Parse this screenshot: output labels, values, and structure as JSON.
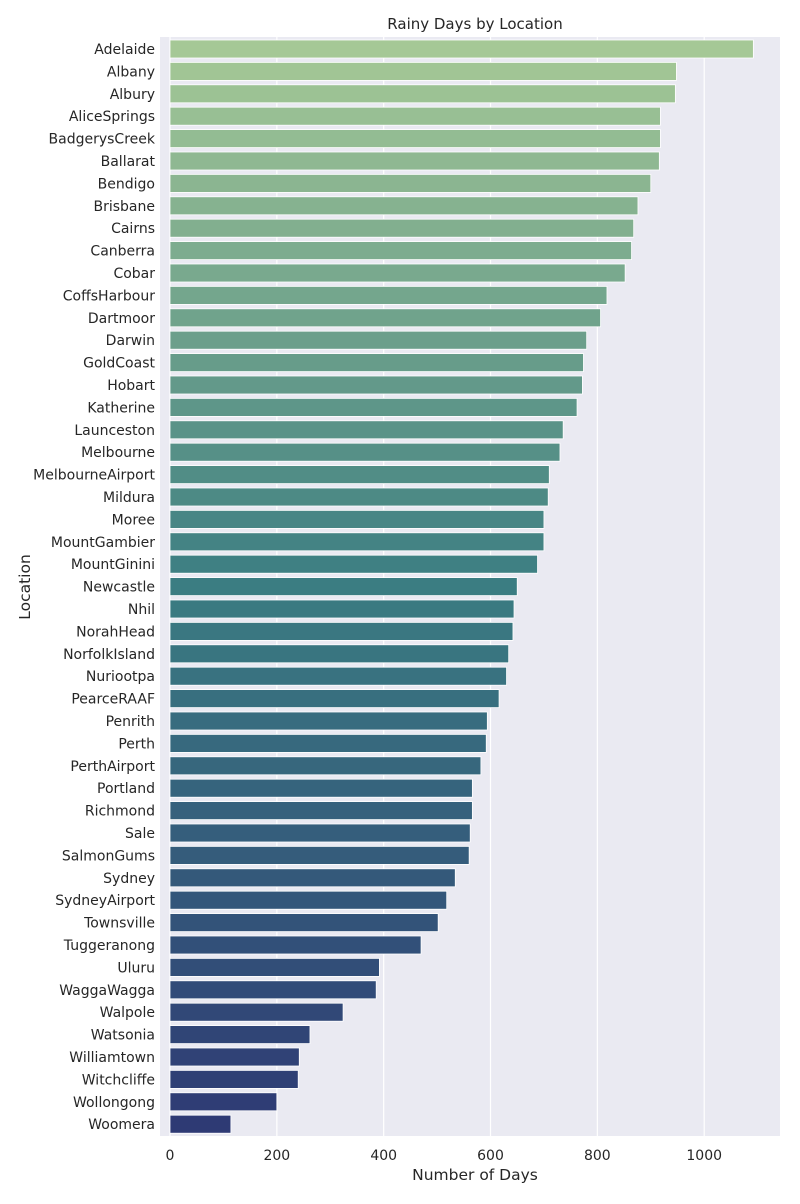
{
  "chart_data": {
    "type": "bar",
    "orientation": "horizontal",
    "title": "Rainy Days by Location",
    "xlabel": "Number of Days",
    "ylabel": "Location",
    "xlim": [
      0,
      1150
    ],
    "xticks": [
      0,
      200,
      400,
      600,
      800,
      1000
    ],
    "grid": true,
    "palette": "crest",
    "colors": {
      "start": "#A5C896",
      "mid": "#3B7D82",
      "end": "#2E3A74",
      "background": "#EAEAF2",
      "grid": "#FFFFFF"
    },
    "categories": [
      "Adelaide",
      "Albany",
      "Albury",
      "AliceSprings",
      "BadgerysCreek",
      "Ballarat",
      "Bendigo",
      "Brisbane",
      "Cairns",
      "Canberra",
      "Cobar",
      "CoffsHarbour",
      "Dartmoor",
      "Darwin",
      "GoldCoast",
      "Hobart",
      "Katherine",
      "Launceston",
      "Melbourne",
      "MelbourneAirport",
      "Mildura",
      "Moree",
      "MountGambier",
      "MountGinini",
      "Newcastle",
      "Nhil",
      "NorahHead",
      "NorfolkIsland",
      "Nuriootpa",
      "PearceRAAF",
      "Penrith",
      "Perth",
      "PerthAirport",
      "Portland",
      "Richmond",
      "Sale",
      "SalmonGums",
      "Sydney",
      "SydneyAirport",
      "Townsville",
      "Tuggeranong",
      "Uluru",
      "WaggaWagga",
      "Walpole",
      "Watsonia",
      "Williamtown",
      "Witchcliffe",
      "Wollongong",
      "Woomera"
    ],
    "values": [
      1092,
      948,
      946,
      918,
      918,
      916,
      900,
      876,
      868,
      864,
      852,
      818,
      806,
      780,
      774,
      772,
      762,
      736,
      730,
      710,
      708,
      700,
      700,
      688,
      650,
      644,
      642,
      634,
      630,
      616,
      594,
      592,
      582,
      566,
      566,
      562,
      560,
      534,
      518,
      502,
      470,
      392,
      386,
      324,
      262,
      242,
      240,
      200,
      114
    ]
  }
}
